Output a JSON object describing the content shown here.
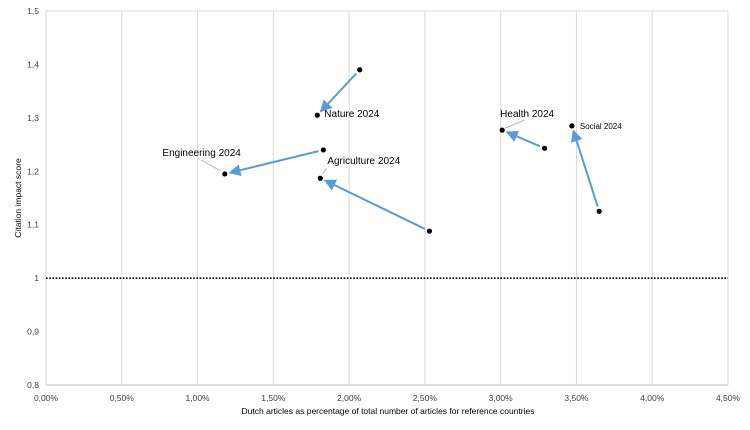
{
  "chart_data": {
    "type": "scatter",
    "xlabel": "Dutch articles as percentage of total number of articles for reference countries",
    "ylabel": "Citation impact score",
    "xlim": [
      0,
      4.5
    ],
    "ylim": [
      0.8,
      1.5
    ],
    "x_ticks": [
      0,
      0.5,
      1,
      1.5,
      2,
      2.5,
      3,
      3.5,
      4,
      4.5
    ],
    "x_tick_labels": [
      "0,00%",
      "0,50%",
      "1,00%",
      "1,50%",
      "2,00%",
      "2,50%",
      "3,00%",
      "3,50%",
      "4,00%",
      "4,50%"
    ],
    "y_ticks": [
      0.8,
      0.9,
      1,
      1.1,
      1.2,
      1.3,
      1.4,
      1.5
    ],
    "y_tick_labels": [
      "0,8",
      "0,9",
      "1",
      "1,1",
      "1,2",
      "1,3",
      "1,4",
      "1,5"
    ],
    "grid": "vertical",
    "reference_line": {
      "y": 1,
      "style": "dotted"
    },
    "arrow_color": "#5b9bd5",
    "point_color": "#000000",
    "series": [
      {
        "name": "Nature 2024",
        "start": [
          2.07,
          1.39
        ],
        "end": [
          1.79,
          1.305
        ]
      },
      {
        "name": "Engineering 2024",
        "start": [
          1.83,
          1.24
        ],
        "end": [
          1.18,
          1.195
        ]
      },
      {
        "name": "Agriculture 2024",
        "start": [
          2.53,
          1.088
        ],
        "end": [
          1.81,
          1.187
        ]
      },
      {
        "name": "Health 2024",
        "start": [
          3.29,
          1.243
        ],
        "end": [
          3.01,
          1.277
        ]
      },
      {
        "name": "Social 2024",
        "start": [
          3.65,
          1.125
        ],
        "end": [
          3.47,
          1.285
        ]
      }
    ]
  }
}
